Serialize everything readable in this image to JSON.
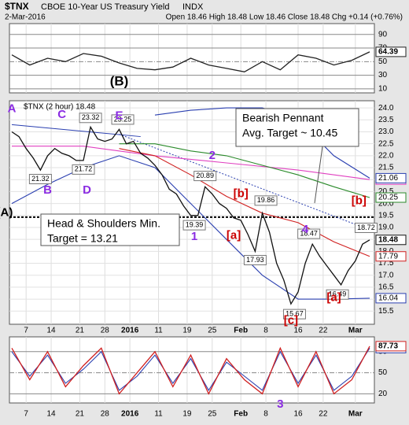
{
  "header": {
    "symbol": "$TNX",
    "name": "CBOE 10-Year US Treasury Yield",
    "exchange": "INDX",
    "date": "2-Mar-2016",
    "quote": "Open 18.46 High 18.48 Low 18.46 Close 18.48 Chg +0.14 (+0.76%)"
  },
  "chart_data": [
    {
      "type": "line",
      "ylim": [
        4,
        106
      ],
      "yticks": [
        90,
        70,
        50,
        30,
        10
      ],
      "series": [
        {
          "color": "#222222",
          "x": [
            0,
            5,
            10,
            15,
            20,
            25,
            30,
            35,
            40,
            45,
            50,
            55,
            60,
            65,
            70,
            75,
            80,
            85,
            90,
            95,
            100
          ],
          "values": [
            60,
            45,
            55,
            50,
            62,
            58,
            48,
            40,
            38,
            42,
            55,
            45,
            40,
            35,
            50,
            38,
            60,
            55,
            45,
            52,
            64.39
          ]
        }
      ],
      "annotations": [
        {
          "text": "(B)",
          "x": 30,
          "y": 20,
          "color": "#000000"
        }
      ]
    },
    {
      "type": "line",
      "label": "$TNX (2 hour) 18.48",
      "ylim": [
        14.95,
        24.3
      ],
      "yticks": [
        {
          "value": 24,
          "label": "24.0"
        },
        23.5,
        {
          "value": 23,
          "label": "23.0"
        },
        22.5,
        {
          "value": 22,
          "label": "22.0"
        },
        21.5,
        {
          "value": 21,
          "label": "21.0"
        },
        20.5,
        {
          "value": 20,
          "label": "20.0"
        },
        19.5,
        {
          "value": 19,
          "label": "19.0"
        },
        18.5,
        {
          "value": 18,
          "label": "18.0"
        },
        17.5,
        {
          "value": 17,
          "label": "17.0"
        },
        16.5,
        {
          "value": 16,
          "label": "16.0"
        },
        15.5
      ],
      "xticks": [
        {
          "value": 4,
          "label": "7"
        },
        {
          "value": 11,
          "label": "14"
        },
        {
          "value": 19,
          "label": "21"
        },
        {
          "value": 26,
          "label": "28"
        },
        {
          "value": 33,
          "label": "2016"
        },
        {
          "value": 41,
          "label": "11"
        },
        {
          "value": 49,
          "label": "19"
        },
        {
          "value": 56,
          "label": "25"
        },
        {
          "value": 64,
          "label": "Feb"
        },
        {
          "value": 71,
          "label": "8"
        },
        {
          "value": 80,
          "label": "16"
        },
        {
          "value": 87,
          "label": "22"
        },
        {
          "value": 96,
          "label": "Mar"
        }
      ],
      "series": [
        {
          "color": "#111111",
          "x": [
            0,
            2,
            4,
            6,
            8,
            10,
            12,
            14,
            16,
            18,
            20,
            22,
            24,
            26,
            28,
            30,
            32,
            34,
            36,
            38,
            40,
            42,
            44,
            46,
            48,
            50,
            52,
            54,
            56,
            58,
            60,
            62,
            64,
            66,
            68,
            70,
            72,
            74,
            76,
            78,
            80,
            82,
            84,
            86,
            88,
            90,
            92,
            94,
            96,
            98,
            100
          ],
          "values": [
            23.0,
            22.8,
            22.3,
            21.9,
            21.4,
            22.0,
            22.3,
            22.1,
            22.0,
            21.8,
            21.8,
            23.2,
            22.7,
            22.6,
            22.7,
            23.1,
            22.5,
            22.6,
            22.1,
            21.9,
            21.6,
            21.2,
            20.6,
            20.4,
            19.9,
            19.5,
            19.5,
            20.7,
            20.4,
            20.0,
            19.8,
            19.4,
            19.3,
            18.7,
            18.0,
            19.6,
            18.8,
            17.5,
            16.8,
            15.8,
            16.3,
            17.5,
            18.3,
            17.8,
            17.4,
            17.0,
            16.6,
            17.2,
            17.6,
            18.3,
            18.48
          ]
        },
        {
          "color": "#2a3fb0",
          "x": [
            40,
            50,
            60,
            70,
            80,
            90,
            100
          ],
          "values": [
            23.7,
            23.9,
            24.0,
            24.0,
            23.5,
            22.0,
            21.06
          ]
        },
        {
          "color": "#2a3fb0",
          "x": [
            0,
            10,
            20,
            30,
            40,
            50,
            60,
            70,
            80,
            90,
            100
          ],
          "values": [
            20.0,
            20.8,
            21.5,
            22.0,
            21.5,
            20.0,
            18.5,
            17.0,
            16.0,
            16.0,
            16.04
          ]
        },
        {
          "color": "#d02020",
          "x": [
            30,
            40,
            50,
            60,
            70,
            80,
            90,
            100
          ],
          "values": [
            22.3,
            22.0,
            21.2,
            20.3,
            19.6,
            19.2,
            18.4,
            17.79
          ]
        },
        {
          "color": "#2a8a2a",
          "x": [
            30,
            40,
            50,
            60,
            70,
            80,
            90,
            100
          ],
          "values": [
            22.5,
            22.5,
            22.2,
            22.0,
            21.6,
            21.2,
            20.7,
            20.25
          ]
        },
        {
          "color": "#e040c0",
          "x": [
            0,
            20,
            40,
            60,
            80,
            100
          ],
          "values": [
            22.4,
            22.4,
            22.0,
            21.7,
            21.4,
            21.0
          ]
        }
      ],
      "hline": 19.43,
      "trendlines": [
        {
          "x1": 0,
          "y1": 23.3,
          "x2": 36,
          "y2": 22.8,
          "color": "#2a3fb0",
          "style": "solid"
        },
        {
          "x1": 30,
          "y1": 22.9,
          "x2": 100,
          "y2": 18.9,
          "color": "#2a3fb0",
          "style": "dotted"
        }
      ],
      "point_labels": [
        {
          "x": 22,
          "value": 23.32
        },
        {
          "x": 31,
          "value": 23.25
        },
        {
          "x": 8,
          "value": 21.32
        },
        {
          "x": 20,
          "value": 21.72
        },
        {
          "x": 54,
          "value": 20.89
        },
        {
          "x": 51,
          "value": 19.39
        },
        {
          "x": 68,
          "value": 17.93
        },
        {
          "x": 71,
          "value": 19.86
        },
        {
          "x": 79,
          "value": 15.67
        },
        {
          "x": 83,
          "value": 18.47
        },
        {
          "x": 91,
          "value": 16.49
        },
        {
          "x": 99,
          "value": 18.72
        }
      ],
      "annotations": [
        {
          "text": "A",
          "x": 0,
          "y": 23.95,
          "color": "#8a2be2"
        },
        {
          "text": "C",
          "x": 14,
          "y": 23.7,
          "color": "#8a2be2"
        },
        {
          "text": "E",
          "x": 30,
          "y": 23.65,
          "color": "#8a2be2"
        },
        {
          "text": "B",
          "x": 10,
          "y": 20.55,
          "color": "#8a2be2"
        },
        {
          "text": "D",
          "x": 21,
          "y": 20.55,
          "color": "#8a2be2"
        },
        {
          "text": "2",
          "x": 56,
          "y": 22.0,
          "color": "#8a2be2"
        },
        {
          "text": "1",
          "x": 51,
          "y": 18.6,
          "color": "#8a2be2"
        },
        {
          "text": "[b]",
          "x": 64,
          "y": 20.4,
          "color": "#cc0000"
        },
        {
          "text": "[a]",
          "x": 62,
          "y": 18.65,
          "color": "#cc0000"
        },
        {
          "text": "4",
          "x": 82,
          "y": 18.9,
          "color": "#8a2be2"
        },
        {
          "text": "[c]",
          "x": 78,
          "y": 15.1,
          "color": "#cc0000"
        },
        {
          "text": "[a]",
          "x": 90,
          "y": 16.05,
          "color": "#cc0000"
        },
        {
          "text": "[b]",
          "x": 97,
          "y": 20.1,
          "color": "#cc0000"
        },
        {
          "text": "(A)",
          "x": -2,
          "y": 19.6,
          "color": "#000000"
        }
      ],
      "callouts": [
        [
          "Bearish Pennant",
          "Avg. Target ~ 10.45"
        ],
        [
          "Head & Shoulders Min.",
          "Target = 13.21"
        ]
      ]
    },
    {
      "type": "line",
      "ylim": [
        7,
        101
      ],
      "yticks": [
        80,
        50,
        20
      ],
      "xticks": [
        {
          "value": 4,
          "label": "7"
        },
        {
          "value": 11,
          "label": "14"
        },
        {
          "value": 19,
          "label": "21"
        },
        {
          "value": 26,
          "label": "28"
        },
        {
          "value": 33,
          "label": "2016"
        },
        {
          "value": 41,
          "label": "11"
        },
        {
          "value": 49,
          "label": "19"
        },
        {
          "value": 56,
          "label": "25"
        },
        {
          "value": 64,
          "label": "Feb"
        },
        {
          "value": 71,
          "label": "8"
        },
        {
          "value": 80,
          "label": "16"
        },
        {
          "value": 87,
          "label": "22"
        },
        {
          "value": 96,
          "label": "Mar"
        }
      ],
      "series": [
        {
          "color": "#d02020",
          "x": [
            0,
            5,
            10,
            15,
            20,
            25,
            30,
            35,
            40,
            45,
            50,
            55,
            60,
            65,
            70,
            75,
            80,
            85,
            90,
            95,
            100
          ],
          "values": [
            85,
            40,
            80,
            30,
            60,
            85,
            20,
            50,
            80,
            30,
            75,
            20,
            70,
            40,
            20,
            85,
            30,
            80,
            20,
            40,
            87.73
          ]
        },
        {
          "color": "#2a3fb0",
          "x": [
            0,
            5,
            10,
            15,
            20,
            25,
            30,
            35,
            40,
            45,
            50,
            55,
            60,
            65,
            70,
            75,
            80,
            85,
            90,
            95,
            100
          ],
          "values": [
            80,
            45,
            75,
            35,
            55,
            80,
            25,
            45,
            75,
            35,
            70,
            25,
            65,
            45,
            25,
            80,
            35,
            75,
            25,
            45,
            85
          ]
        }
      ],
      "annotations": [
        {
          "text": "3",
          "x": 75,
          "y": 5,
          "color": "#8a2be2"
        }
      ]
    }
  ]
}
